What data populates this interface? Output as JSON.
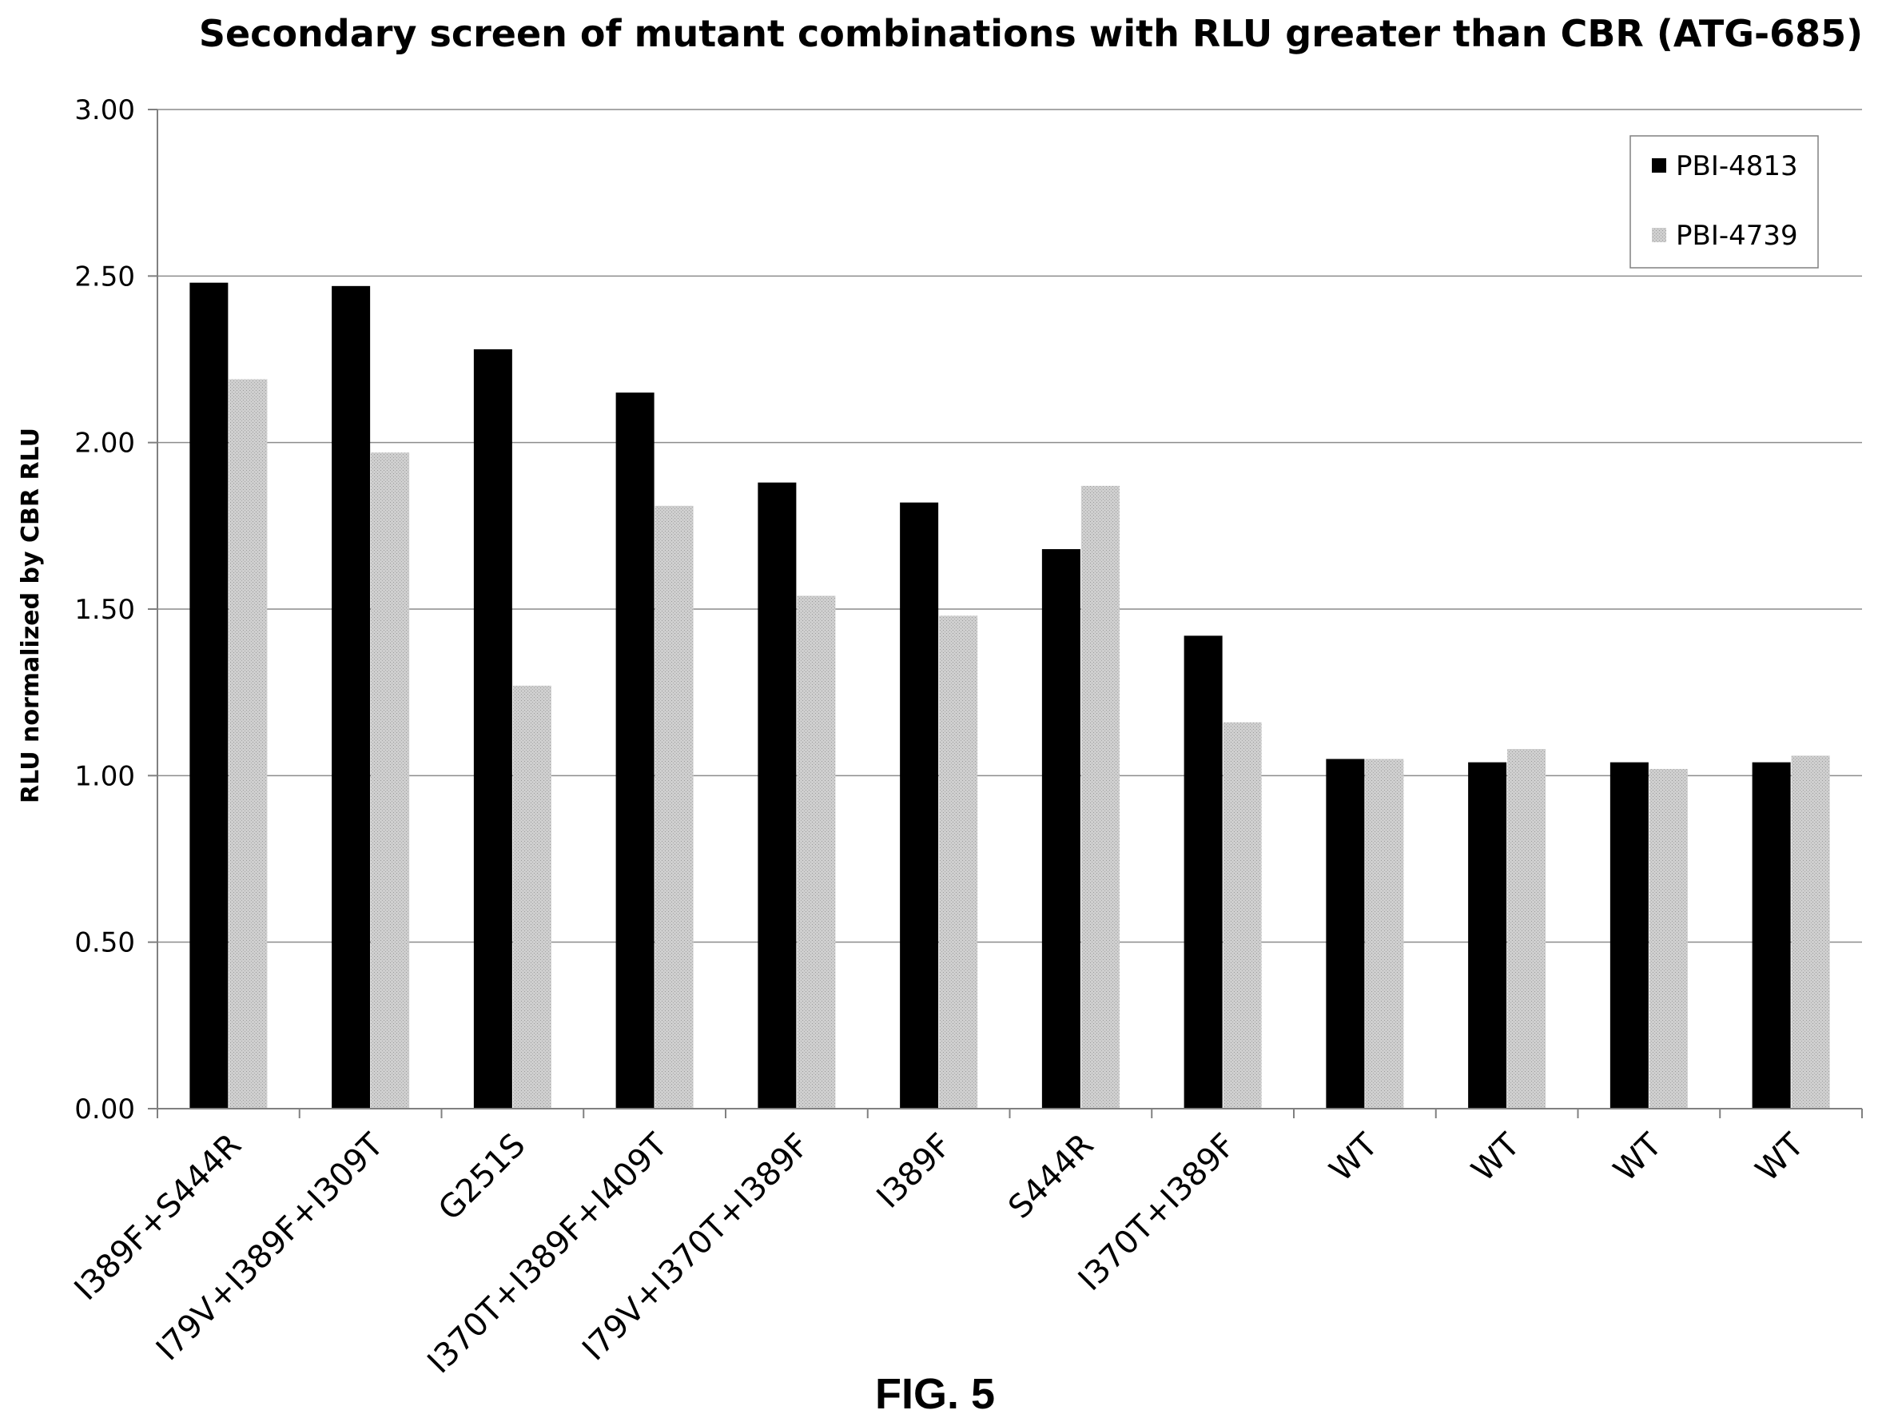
{
  "chart_data": {
    "type": "bar",
    "title": "Secondary screen of mutant combinations with RLU greater than CBR (ATG-685)",
    "xlabel": "",
    "ylabel": "RLU normalized by CBR RLU",
    "ylim": [
      0,
      3
    ],
    "yticks": [
      "0.00",
      "0.50",
      "1.00",
      "1.50",
      "2.00",
      "2.50",
      "3.00"
    ],
    "grid": true,
    "legend_position": "top-right",
    "categories": [
      "I389F+S444R",
      "I79V+I389F+I309T",
      "G251S",
      "I370T+I389F+I409T",
      "I79V+I370T+I389F",
      "I389F",
      "S444R",
      "I370T+I389F",
      "WT",
      "WT",
      "WT",
      "WT"
    ],
    "series": [
      {
        "name": "PBI-4813",
        "color": "#000000",
        "values": [
          2.48,
          2.47,
          2.28,
          2.15,
          1.88,
          1.82,
          1.68,
          1.42,
          1.05,
          1.04,
          1.04,
          1.04
        ]
      },
      {
        "name": "PBI-4739",
        "color": "#c8c8c8",
        "values": [
          2.19,
          1.97,
          1.27,
          1.81,
          1.54,
          1.48,
          1.87,
          1.16,
          1.05,
          1.08,
          1.02,
          1.06
        ]
      }
    ]
  },
  "caption": "FIG. 5"
}
